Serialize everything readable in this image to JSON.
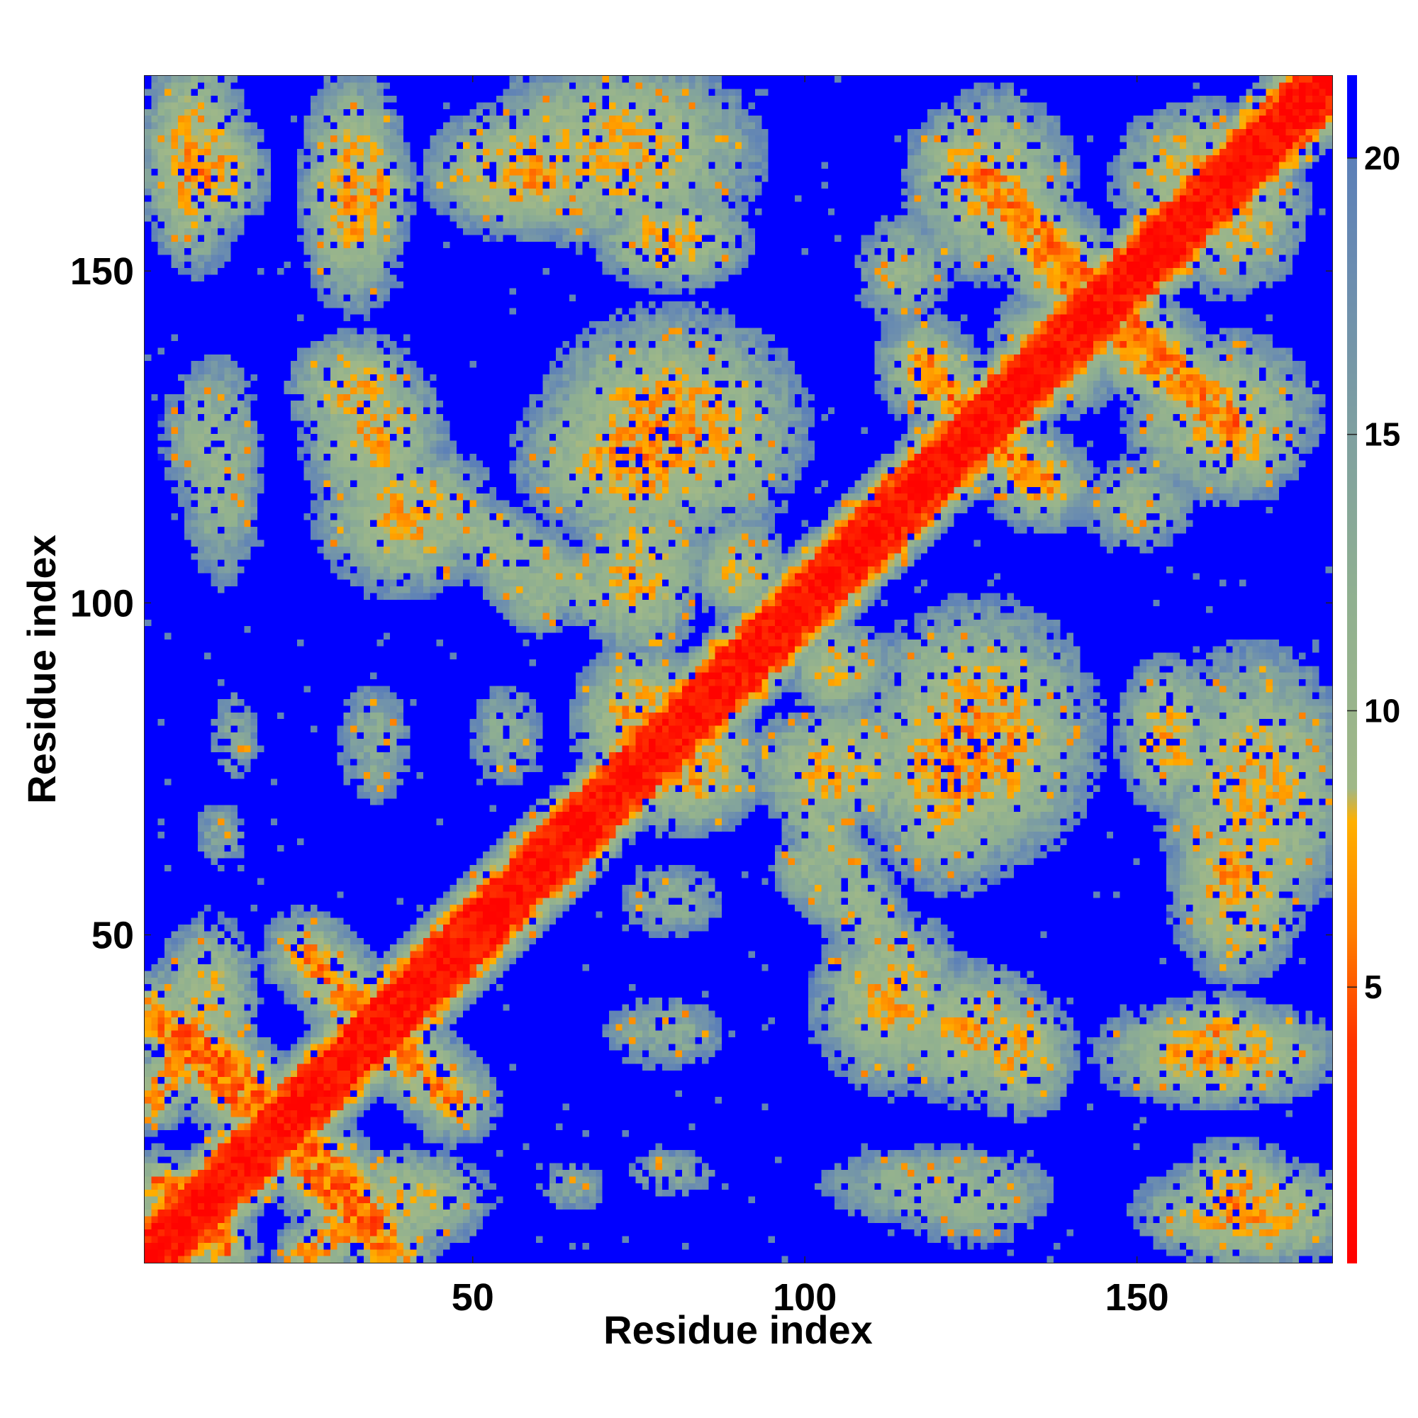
{
  "chart_data": {
    "type": "heatmap",
    "title": "",
    "xlabel": "Residue index",
    "ylabel": "Residue index",
    "n_residues": 179,
    "xlim": [
      1,
      179
    ],
    "ylim": [
      1,
      179
    ],
    "x_ticks": [
      50,
      100,
      150
    ],
    "y_ticks": [
      50,
      100,
      150
    ],
    "colorbar": {
      "ticks": [
        5,
        10,
        15,
        20
      ],
      "range": [
        0,
        21.5
      ],
      "stops": [
        {
          "value": 0,
          "color": "#ff0000"
        },
        {
          "value": 4,
          "color": "#ff3300"
        },
        {
          "value": 6,
          "color": "#ff8000"
        },
        {
          "value": 8,
          "color": "#ffb000"
        },
        {
          "value": 8.6,
          "color": "#a0b888"
        },
        {
          "value": 12,
          "color": "#90b090"
        },
        {
          "value": 15,
          "color": "#7fa0a0"
        },
        {
          "value": 18,
          "color": "#6a8cb0"
        },
        {
          "value": 20,
          "color": "#5b7fb8"
        },
        {
          "value": 20.01,
          "color": "#0000ff"
        },
        {
          "value": 21.5,
          "color": "#0000ff"
        }
      ]
    },
    "contact_segments": [
      {
        "from": [
          1,
          1
        ],
        "to": [
          179,
          179
        ],
        "min": 0.5,
        "width": 3.2,
        "spread": 5.0
      },
      {
        "from": [
          2,
          38
        ],
        "to": [
          16,
          24
        ],
        "min": 5.5,
        "width": 1.4,
        "spread": 9
      },
      {
        "from": [
          24,
          20
        ],
        "to": [
          35,
          7
        ],
        "min": 5.5,
        "width": 1.4,
        "spread": 9
      },
      {
        "from": [
          4,
          12
        ],
        "to": [
          12,
          3
        ],
        "min": 5.5,
        "width": 1.3,
        "spread": 7
      },
      {
        "from": [
          27,
          45
        ],
        "to": [
          47,
          25
        ],
        "min": 6.0,
        "width": 1.3,
        "spread": 9
      },
      {
        "from": [
          25,
          2
        ],
        "to": [
          35,
          8
        ],
        "min": 6.5,
        "width": 1.3,
        "spread": 6
      },
      {
        "from": [
          118,
          135
        ],
        "to": [
          136,
          118
        ],
        "min": 6.0,
        "width": 1.3,
        "spread": 10
      },
      {
        "from": [
          128,
          164
        ],
        "to": [
          147,
          144
        ],
        "min": 6.0,
        "width": 1.3,
        "spread": 10
      },
      {
        "from": [
          145,
          142
        ],
        "to": [
          165,
          126
        ],
        "min": 6.0,
        "width": 1.3,
        "spread": 10
      },
      {
        "from": [
          50,
          112
        ],
        "to": [
          70,
          100
        ],
        "min": 11,
        "width": 2.5,
        "spread": 8
      },
      {
        "from": [
          100,
          60
        ],
        "to": [
          118,
          44
        ],
        "min": 11,
        "width": 2.5,
        "spread": 8
      }
    ],
    "contact_blobs": [
      {
        "x": 10,
        "y": 165,
        "rx": 9,
        "ry": 10,
        "min": 7
      },
      {
        "x": 34,
        "y": 162,
        "rx": 7,
        "ry": 10,
        "min": 7
      },
      {
        "x": 58,
        "y": 165,
        "rx": 15,
        "ry": 10,
        "min": 7
      },
      {
        "x": 80,
        "y": 155,
        "rx": 12,
        "ry": 8,
        "min": 8
      },
      {
        "x": 10,
        "y": 125,
        "rx": 8,
        "ry": 13,
        "min": 11
      },
      {
        "x": 35,
        "y": 125,
        "rx": 11,
        "ry": 13,
        "min": 8
      },
      {
        "x": 75,
        "y": 122,
        "rx": 18,
        "ry": 13,
        "min": 7
      },
      {
        "x": 128,
        "y": 163,
        "rx": 13,
        "ry": 15,
        "min": 8
      },
      {
        "x": 164,
        "y": 160,
        "rx": 12,
        "ry": 14,
        "min": 8
      },
      {
        "x": 126,
        "y": 80,
        "rx": 18,
        "ry": 20,
        "min": 7
      },
      {
        "x": 105,
        "y": 75,
        "rx": 14,
        "ry": 10,
        "min": 8
      },
      {
        "x": 113,
        "y": 40,
        "rx": 12,
        "ry": 14,
        "min": 8
      },
      {
        "x": 132,
        "y": 32,
        "rx": 9,
        "ry": 10,
        "min": 8
      },
      {
        "x": 120,
        "y": 12,
        "rx": 20,
        "ry": 7,
        "min": 11
      },
      {
        "x": 168,
        "y": 72,
        "rx": 15,
        "ry": 22,
        "min": 8
      },
      {
        "x": 162,
        "y": 32,
        "rx": 18,
        "ry": 8,
        "min": 7
      },
      {
        "x": 167,
        "y": 8,
        "rx": 17,
        "ry": 8,
        "min": 7
      },
      {
        "x": 82,
        "y": 75,
        "rx": 12,
        "ry": 10,
        "min": 7
      },
      {
        "x": 75,
        "y": 35,
        "rx": 7,
        "ry": 7,
        "min": 14
      },
      {
        "x": 65,
        "y": 12,
        "rx": 7,
        "ry": 5,
        "min": 14
      },
      {
        "x": 40,
        "y": 10,
        "rx": 14,
        "ry": 8,
        "min": 9
      },
      {
        "x": 14,
        "y": 80,
        "rx": 5,
        "ry": 9,
        "min": 14
      },
      {
        "x": 35,
        "y": 80,
        "rx": 7,
        "ry": 10,
        "min": 13
      },
      {
        "x": 55,
        "y": 80,
        "rx": 7,
        "ry": 10,
        "min": 13
      },
      {
        "x": 135,
        "y": 140,
        "rx": 8,
        "ry": 8,
        "min": 11
      },
      {
        "x": 150,
        "y": 115,
        "rx": 10,
        "ry": 8,
        "min": 11
      },
      {
        "x": 165,
        "y": 125,
        "rx": 10,
        "ry": 10,
        "min": 8
      },
      {
        "x": 105,
        "y": 90,
        "rx": 8,
        "ry": 8,
        "min": 9
      }
    ]
  }
}
